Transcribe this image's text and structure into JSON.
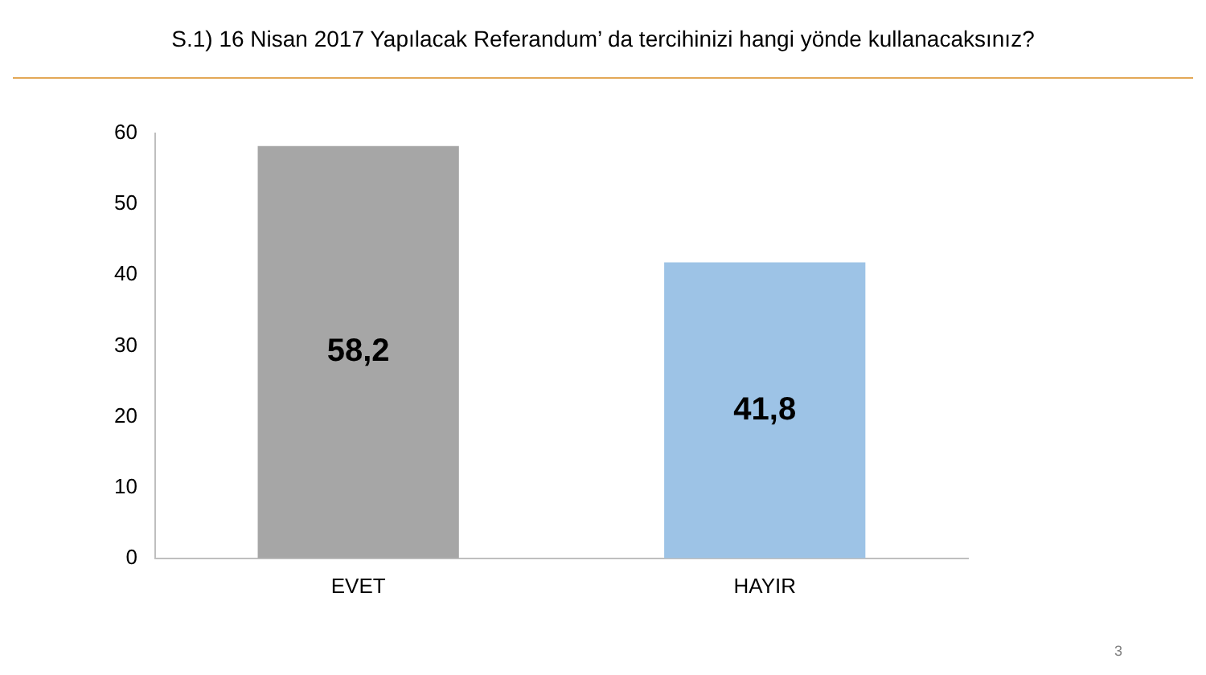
{
  "chart_data": {
    "type": "bar",
    "title": "S.1)  16 Nisan 2017 Yapılacak Referandum’ da tercihinizi hangi yönde kullanacaksınız?",
    "categories": [
      "EVET",
      "HAYIR"
    ],
    "values": [
      58.2,
      41.8
    ],
    "colors": [
      "#a6a6a6",
      "#9dc3e6"
    ],
    "value_labels": [
      "58,2",
      "41,8"
    ],
    "ylim": [
      0,
      60
    ],
    "yticks": [
      0,
      10,
      20,
      30,
      40,
      50,
      60
    ],
    "grid": false,
    "legend": false,
    "annotations": [
      "3"
    ]
  }
}
